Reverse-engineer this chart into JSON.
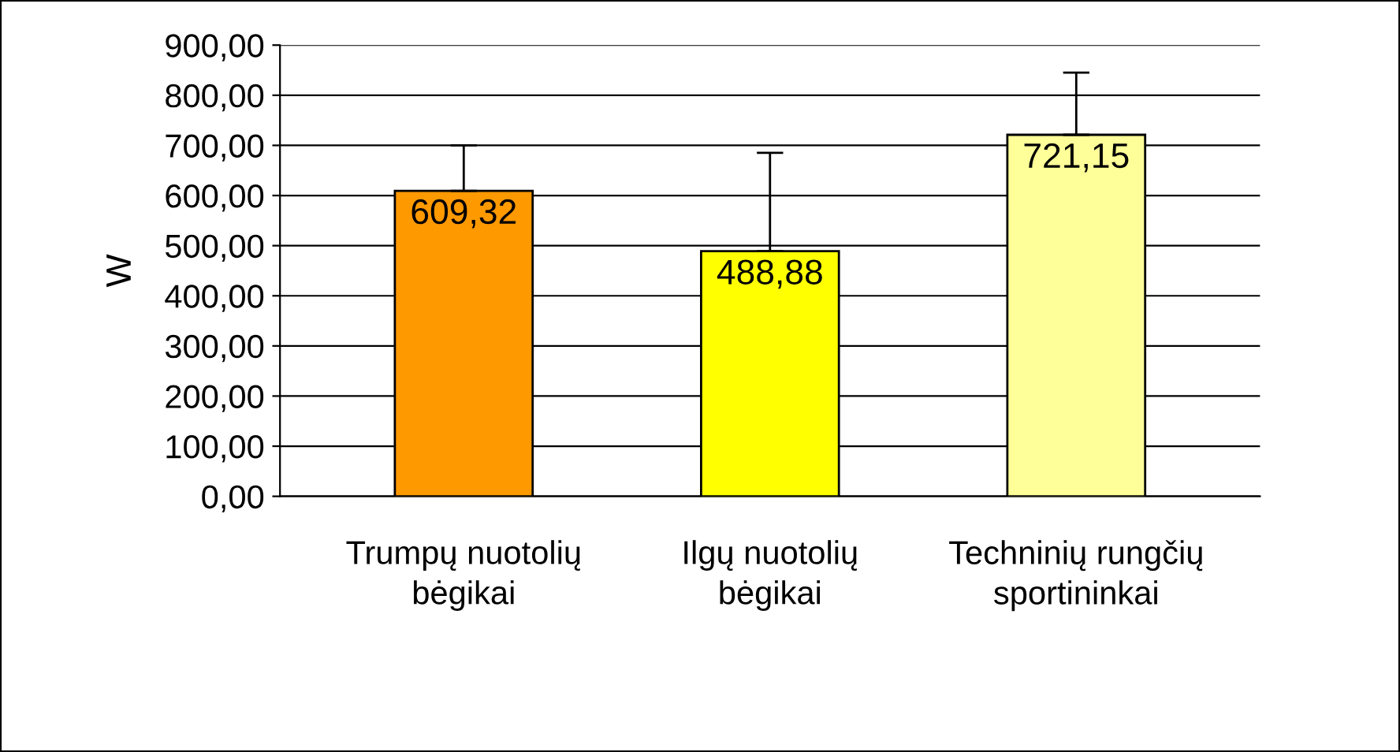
{
  "chart_data": {
    "type": "bar",
    "ylabel": "W",
    "categories": [
      "Trumpų nuotolių\nbėgikai",
      "Ilgų nuotolių\nbėgikai",
      "Techninių rungčių\nsportininkai"
    ],
    "values": [
      609.32,
      488.88,
      721.15
    ],
    "colors": [
      "#ff9900",
      "#ffff00",
      "#ffff99"
    ],
    "errors": [
      [
        609.32,
        700
      ],
      [
        488.88,
        685
      ],
      [
        721.15,
        845
      ]
    ],
    "value_labels": [
      "609,32",
      "488,88",
      "721,15"
    ],
    "ylim": [
      0,
      900
    ],
    "yticks": [
      {
        "value": 0,
        "label": "0,00"
      },
      {
        "value": 100,
        "label": "100,00"
      },
      {
        "value": 200,
        "label": "200,00"
      },
      {
        "value": 300,
        "label": "300,00"
      },
      {
        "value": 400,
        "label": "400,00"
      },
      {
        "value": 500,
        "label": "500,00"
      },
      {
        "value": 600,
        "label": "600,00"
      },
      {
        "value": 700,
        "label": "700,00"
      },
      {
        "value": 800,
        "label": "800,00"
      },
      {
        "value": 900,
        "label": "900,00"
      }
    ],
    "grid": "y"
  }
}
